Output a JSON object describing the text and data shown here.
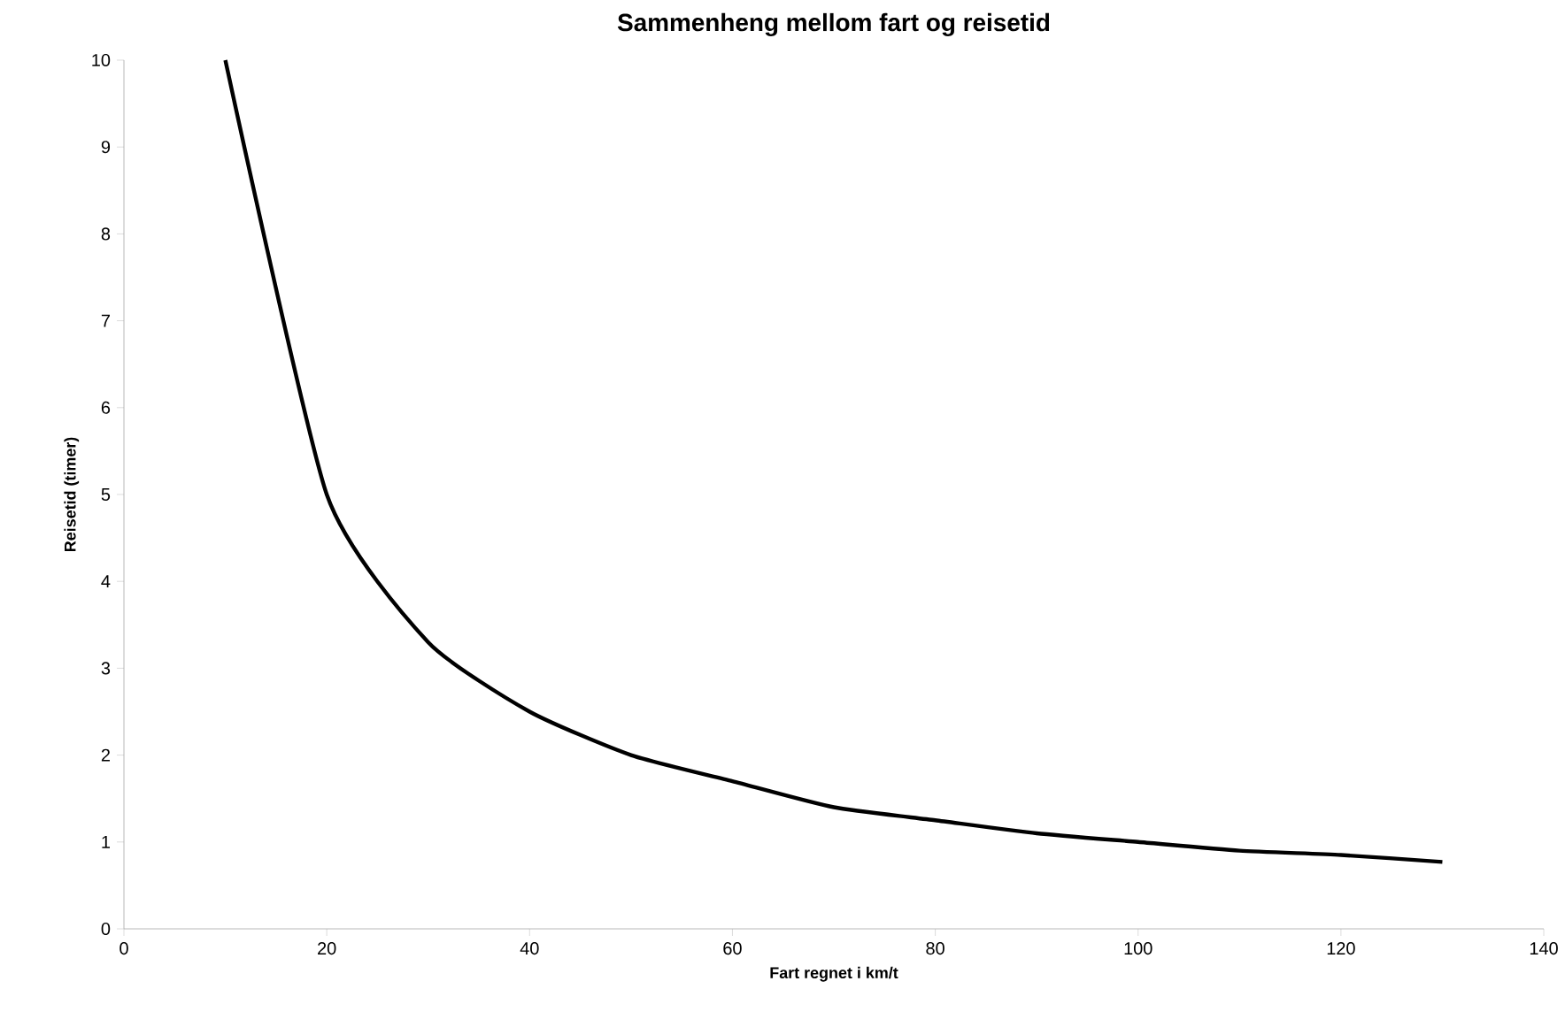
{
  "chart_data": {
    "type": "line",
    "title": "Sammenheng mellom fart og reisetid",
    "xlabel": "Fart regnet i km/t",
    "ylabel": "Reisetid (timer)",
    "x": [
      10,
      20,
      30,
      40,
      50,
      60,
      70,
      80,
      90,
      100,
      110,
      120,
      130
    ],
    "values": [
      10,
      5,
      3.3,
      2.5,
      2,
      1.7,
      1.4,
      1.25,
      1.1,
      1,
      0.9,
      0.85,
      0.77
    ],
    "color": "#000000",
    "xlim": [
      0,
      140
    ],
    "ylim": [
      0,
      10
    ],
    "xticks": [
      0,
      20,
      40,
      60,
      80,
      100,
      120,
      140
    ],
    "yticks": [
      0,
      1,
      2,
      3,
      4,
      5,
      6,
      7,
      8,
      9,
      10
    ]
  }
}
